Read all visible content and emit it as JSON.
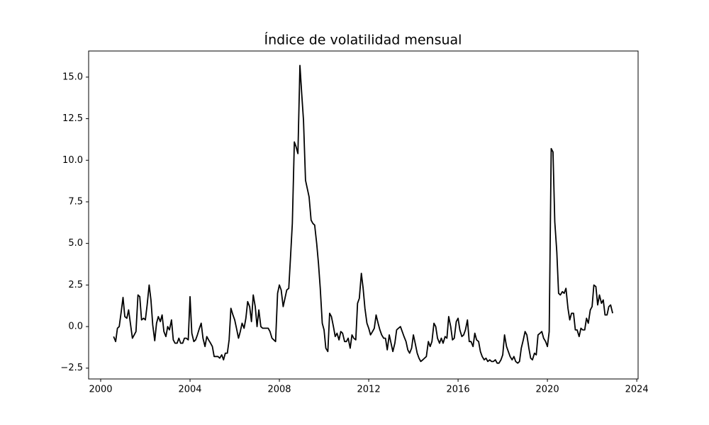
{
  "chart_data": {
    "type": "line",
    "title": "Índice de volatilidad mensual",
    "xlim": [
      1999.46,
      2024.06
    ],
    "xticks": [
      2000,
      2004,
      2008,
      2012,
      2016,
      2020,
      2024
    ],
    "ylim": [
      -3.15,
      16.57
    ],
    "yticks": [
      {
        "value": -2.5,
        "label": "−2.5"
      },
      {
        "value": 0,
        "label": "0.0"
      },
      {
        "value": 2.5,
        "label": "2.5"
      },
      {
        "value": 5,
        "label": "5.0"
      },
      {
        "value": 7.5,
        "label": "7.5"
      },
      {
        "value": 10,
        "label": "10.0"
      },
      {
        "value": 12.5,
        "label": "12.5"
      },
      {
        "value": 15,
        "label": "15.0"
      }
    ],
    "grid": false,
    "x": [
      2000.58,
      2000.67,
      2000.75,
      2000.83,
      2000.92,
      2001,
      2001.08,
      2001.17,
      2001.25,
      2001.33,
      2001.42,
      2001.5,
      2001.58,
      2001.67,
      2001.75,
      2001.83,
      2001.92,
      2002,
      2002.08,
      2002.17,
      2002.25,
      2002.33,
      2002.42,
      2002.5,
      2002.58,
      2002.67,
      2002.75,
      2002.83,
      2002.92,
      2003,
      2003.08,
      2003.17,
      2003.25,
      2003.33,
      2003.42,
      2003.5,
      2003.58,
      2003.67,
      2003.75,
      2003.83,
      2003.92,
      2004,
      2004.08,
      2004.17,
      2004.25,
      2004.33,
      2004.42,
      2004.5,
      2004.58,
      2004.67,
      2004.75,
      2004.83,
      2004.92,
      2005,
      2005.08,
      2005.17,
      2005.25,
      2005.33,
      2005.42,
      2005.5,
      2005.58,
      2005.67,
      2005.75,
      2005.83,
      2005.92,
      2006,
      2006.08,
      2006.17,
      2006.25,
      2006.33,
      2006.42,
      2006.5,
      2006.58,
      2006.67,
      2006.75,
      2006.83,
      2006.92,
      2007,
      2007.08,
      2007.17,
      2007.25,
      2007.33,
      2007.42,
      2007.5,
      2007.58,
      2007.67,
      2007.75,
      2007.83,
      2007.92,
      2008,
      2008.08,
      2008.17,
      2008.25,
      2008.33,
      2008.42,
      2008.5,
      2008.58,
      2008.67,
      2008.75,
      2008.83,
      2008.92,
      2009,
      2009.08,
      2009.17,
      2009.25,
      2009.33,
      2009.42,
      2009.5,
      2009.58,
      2009.67,
      2009.75,
      2009.83,
      2009.92,
      2010,
      2010.08,
      2010.17,
      2010.25,
      2010.33,
      2010.42,
      2010.5,
      2010.58,
      2010.67,
      2010.75,
      2010.83,
      2010.92,
      2011,
      2011.08,
      2011.17,
      2011.25,
      2011.33,
      2011.42,
      2011.5,
      2011.58,
      2011.67,
      2011.75,
      2011.83,
      2011.92,
      2012,
      2012.08,
      2012.17,
      2012.25,
      2012.33,
      2012.42,
      2012.5,
      2012.58,
      2012.67,
      2012.75,
      2012.83,
      2012.92,
      2013,
      2013.08,
      2013.17,
      2013.25,
      2013.33,
      2013.42,
      2013.5,
      2013.58,
      2013.67,
      2013.75,
      2013.83,
      2013.92,
      2014,
      2014.08,
      2014.17,
      2014.25,
      2014.33,
      2014.42,
      2014.5,
      2014.58,
      2014.67,
      2014.75,
      2014.83,
      2014.92,
      2015,
      2015.08,
      2015.17,
      2015.25,
      2015.33,
      2015.42,
      2015.5,
      2015.58,
      2015.67,
      2015.75,
      2015.83,
      2015.92,
      2016,
      2016.08,
      2016.17,
      2016.25,
      2016.33,
      2016.42,
      2016.5,
      2016.58,
      2016.67,
      2016.75,
      2016.83,
      2016.92,
      2017,
      2017.08,
      2017.17,
      2017.25,
      2017.33,
      2017.42,
      2017.5,
      2017.58,
      2017.67,
      2017.75,
      2017.83,
      2017.92,
      2018,
      2018.08,
      2018.17,
      2018.25,
      2018.33,
      2018.42,
      2018.5,
      2018.58,
      2018.67,
      2018.75,
      2018.83,
      2018.92,
      2019,
      2019.08,
      2019.17,
      2019.25,
      2019.33,
      2019.42,
      2019.5,
      2019.58,
      2019.67,
      2019.75,
      2019.83,
      2019.92,
      2020,
      2020.08,
      2020.17,
      2020.25,
      2020.33,
      2020.42,
      2020.5,
      2020.58,
      2020.67,
      2020.75,
      2020.83,
      2020.92,
      2021,
      2021.08,
      2021.17,
      2021.25,
      2021.33,
      2021.42,
      2021.5,
      2021.58,
      2021.67,
      2021.75,
      2021.83,
      2021.92,
      2022,
      2022.08,
      2022.17,
      2022.25,
      2022.33,
      2022.42,
      2022.5,
      2022.58,
      2022.67,
      2022.75,
      2022.83,
      2022.92
    ],
    "series": [
      {
        "color": "#000000",
        "values": [
          -0.6,
          -0.9,
          -0.1,
          0.0,
          0.9,
          1.75,
          0.6,
          0.5,
          1.0,
          0.2,
          -0.7,
          -0.5,
          -0.3,
          1.9,
          1.8,
          0.4,
          0.5,
          0.4,
          1.3,
          2.5,
          1.6,
          0.1,
          -0.85,
          0.2,
          0.6,
          0.3,
          0.7,
          -0.3,
          -0.6,
          0.0,
          -0.2,
          0.4,
          -0.8,
          -1.0,
          -1.0,
          -0.7,
          -1.0,
          -1.0,
          -0.7,
          -0.7,
          -0.8,
          1.8,
          -0.4,
          -0.9,
          -0.8,
          -0.5,
          -0.1,
          0.2,
          -0.7,
          -1.2,
          -0.6,
          -0.8,
          -1.0,
          -1.2,
          -1.8,
          -1.8,
          -1.8,
          -1.9,
          -1.7,
          -2.0,
          -1.6,
          -1.6,
          -0.8,
          1.1,
          0.7,
          0.4,
          -0.1,
          -0.7,
          -0.3,
          0.2,
          -0.1,
          0.5,
          1.5,
          1.2,
          0.3,
          1.9,
          1.2,
          0.0,
          1.0,
          0.0,
          -0.1,
          -0.1,
          -0.1,
          -0.1,
          -0.3,
          -0.7,
          -0.8,
          -0.9,
          2.0,
          2.5,
          2.2,
          1.2,
          1.7,
          2.2,
          2.3,
          4.2,
          6.2,
          11.1,
          10.8,
          10.4,
          15.7,
          14.0,
          12.4,
          8.8,
          8.3,
          7.8,
          6.4,
          6.2,
          6.1,
          5.0,
          3.8,
          2.3,
          0.2,
          -0.2,
          -1.3,
          -1.5,
          0.8,
          0.6,
          0.0,
          -0.6,
          -0.4,
          -0.8,
          -0.3,
          -0.4,
          -0.9,
          -0.9,
          -0.7,
          -1.3,
          -0.5,
          -0.7,
          -0.8,
          1.4,
          1.7,
          3.2,
          2.3,
          1.1,
          0.2,
          -0.1,
          -0.5,
          -0.3,
          -0.1,
          0.7,
          0.2,
          -0.2,
          -0.5,
          -0.7,
          -0.7,
          -1.4,
          -0.5,
          -1.0,
          -1.5,
          -1.0,
          -0.2,
          -0.1,
          0.0,
          -0.3,
          -0.6,
          -0.9,
          -1.4,
          -1.6,
          -1.3,
          -0.5,
          -1.0,
          -1.6,
          -1.9,
          -2.1,
          -2.0,
          -1.9,
          -1.8,
          -0.9,
          -1.2,
          -0.9,
          0.2,
          0.0,
          -0.7,
          -1.0,
          -0.7,
          -1.0,
          -0.6,
          -0.7,
          0.6,
          0.0,
          -0.8,
          -0.7,
          0.3,
          0.5,
          -0.2,
          -0.6,
          -0.5,
          -0.2,
          0.4,
          -0.9,
          -0.9,
          -1.2,
          -0.4,
          -0.8,
          -0.9,
          -1.5,
          -1.8,
          -2.0,
          -1.9,
          -2.1,
          -2.0,
          -2.1,
          -2.1,
          -2.0,
          -2.2,
          -2.2,
          -2.0,
          -1.7,
          -0.5,
          -1.2,
          -1.5,
          -1.8,
          -2.0,
          -1.8,
          -2.1,
          -2.2,
          -2.1,
          -1.3,
          -0.8,
          -0.3,
          -0.5,
          -1.3,
          -1.9,
          -2.0,
          -1.6,
          -1.7,
          -0.5,
          -0.4,
          -0.3,
          -0.7,
          -0.9,
          -1.2,
          -0.3,
          10.7,
          10.5,
          6.3,
          4.5,
          2.0,
          1.9,
          2.1,
          2.0,
          2.3,
          1.1,
          0.4,
          0.8,
          0.8,
          -0.2,
          -0.2,
          -0.6,
          -0.1,
          -0.2,
          -0.2,
          0.5,
          0.2,
          1.0,
          1.2,
          2.5,
          2.4,
          1.3,
          1.9,
          1.4,
          1.6,
          0.7,
          0.7,
          1.2,
          1.3,
          0.8
        ]
      }
    ]
  }
}
